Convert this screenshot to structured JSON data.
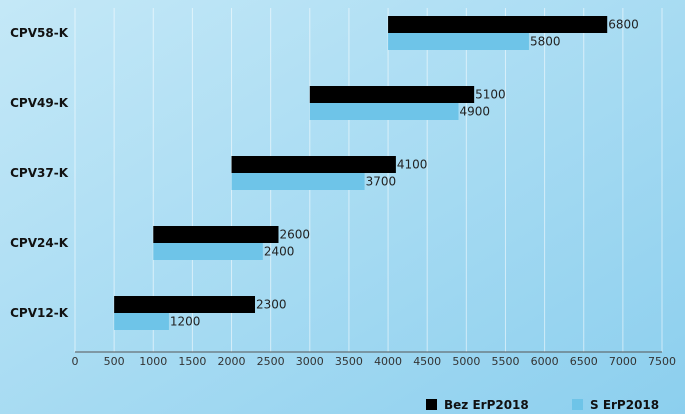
{
  "chart_data": {
    "type": "bar",
    "orientation": "horizontal",
    "floating": true,
    "categories": [
      "CPV58-K",
      "CPV49-K",
      "CPV37-K",
      "CPV24-K",
      "CPV12-K"
    ],
    "series": [
      {
        "name": "Bez ErP2018",
        "color": "#000000",
        "start": [
          4000,
          3000,
          2000,
          1000,
          500
        ],
        "end": [
          6800,
          5100,
          4100,
          2600,
          2300
        ]
      },
      {
        "name": "S ErP2018",
        "color": "#6ec4e8",
        "start": [
          4000,
          3000,
          2000,
          1000,
          500
        ],
        "end": [
          5800,
          4900,
          3700,
          2400,
          1200
        ]
      }
    ],
    "xlim": [
      0,
      7500
    ],
    "xticks": [
      0,
      500,
      1000,
      1500,
      2000,
      2500,
      3000,
      3500,
      4000,
      4500,
      5000,
      5500,
      6000,
      6500,
      7000,
      7500
    ],
    "grid": "vertical",
    "legend_position": "bottom-right",
    "background": [
      "#bfe6f6",
      "#8fd0ee"
    ]
  }
}
